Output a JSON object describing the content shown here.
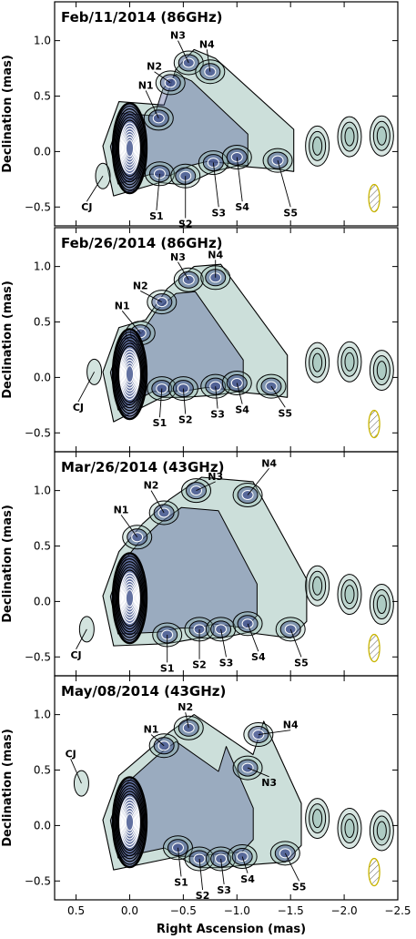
{
  "chart_data": {
    "type": "contour",
    "xlabel": "Right Ascension (mas)",
    "ylabel": "Declination (mas)",
    "xlim": [
      0.7,
      -2.5
    ],
    "ylim": [
      -0.67,
      1.35
    ],
    "x_ticks": [
      0.5,
      0.0,
      -0.5,
      -1.0,
      -1.5,
      -2.0,
      -2.5
    ],
    "x_tick_labels": [
      "0.5",
      "0.0",
      "−0.5",
      "−1.0",
      "−1.5",
      "−2.0",
      "−2.5"
    ],
    "y_ticks": [
      -0.5,
      0.0,
      0.5,
      1.0
    ],
    "y_tick_labels": [
      "−0.5",
      "0.0",
      "0.5",
      "1.0"
    ],
    "colors": {
      "contour": "#000000",
      "inner_contour": "#ffffff",
      "core_fill": "#3d4b8c",
      "jet_fill": "#8fb8ad",
      "beam": "#c8b400"
    },
    "panels": [
      {
        "title": "Feb/11/2014 (86GHz)",
        "components": [
          {
            "label": "CJ",
            "x": 0.25,
            "y": -0.22,
            "label_x": 0.4,
            "label_y": -0.45
          },
          {
            "label": "N1",
            "x": -0.27,
            "y": 0.3,
            "label_x": -0.15,
            "label_y": 0.55
          },
          {
            "label": "N2",
            "x": -0.38,
            "y": 0.62,
            "label_x": -0.23,
            "label_y": 0.72
          },
          {
            "label": "N3",
            "x": -0.55,
            "y": 0.8,
            "label_x": -0.45,
            "label_y": 1.0
          },
          {
            "label": "N4",
            "x": -0.75,
            "y": 0.72,
            "label_x": -0.72,
            "label_y": 0.92
          },
          {
            "label": "S1",
            "x": -0.28,
            "y": -0.2,
            "label_x": -0.25,
            "label_y": -0.53
          },
          {
            "label": "S2",
            "x": -0.52,
            "y": -0.22,
            "label_x": -0.52,
            "label_y": -0.6
          },
          {
            "label": "S3",
            "x": -0.78,
            "y": -0.1,
            "label_x": -0.83,
            "label_y": -0.5
          },
          {
            "label": "S4",
            "x": -1.0,
            "y": -0.05,
            "label_x": -1.05,
            "label_y": -0.45
          },
          {
            "label": "S5",
            "x": -1.38,
            "y": -0.08,
            "label_x": -1.5,
            "label_y": -0.5
          }
        ]
      },
      {
        "title": "Feb/26/2014 (86GHz)",
        "components": [
          {
            "label": "CJ",
            "x": 0.33,
            "y": 0.05,
            "label_x": 0.48,
            "label_y": -0.22
          },
          {
            "label": "N1",
            "x": -0.1,
            "y": 0.4,
            "label_x": 0.07,
            "label_y": 0.6
          },
          {
            "label": "N2",
            "x": -0.3,
            "y": 0.68,
            "label_x": -0.1,
            "label_y": 0.78
          },
          {
            "label": "N3",
            "x": -0.55,
            "y": 0.88,
            "label_x": -0.45,
            "label_y": 1.04
          },
          {
            "label": "N4",
            "x": -0.8,
            "y": 0.9,
            "label_x": -0.8,
            "label_y": 1.06
          },
          {
            "label": "S1",
            "x": -0.3,
            "y": -0.1,
            "label_x": -0.28,
            "label_y": -0.36
          },
          {
            "label": "S2",
            "x": -0.5,
            "y": -0.1,
            "label_x": -0.52,
            "label_y": -0.33
          },
          {
            "label": "S3",
            "x": -0.8,
            "y": -0.08,
            "label_x": -0.82,
            "label_y": -0.28
          },
          {
            "label": "S4",
            "x": -1.0,
            "y": -0.05,
            "label_x": -1.05,
            "label_y": -0.24
          },
          {
            "label": "S5",
            "x": -1.32,
            "y": -0.08,
            "label_x": -1.45,
            "label_y": -0.27
          }
        ]
      },
      {
        "title": "Mar/26/2014 (43GHz)",
        "components": [
          {
            "label": "CJ",
            "x": 0.4,
            "y": -0.25,
            "label_x": 0.5,
            "label_y": -0.43
          },
          {
            "label": "N1",
            "x": -0.07,
            "y": 0.58,
            "label_x": 0.08,
            "label_y": 0.78
          },
          {
            "label": "N2",
            "x": -0.32,
            "y": 0.8,
            "label_x": -0.2,
            "label_y": 1.0
          },
          {
            "label": "N3",
            "x": -0.62,
            "y": 1.0,
            "label_x": -0.8,
            "label_y": 1.08
          },
          {
            "label": "N4",
            "x": -1.1,
            "y": 0.96,
            "label_x": -1.3,
            "label_y": 1.2
          },
          {
            "label": "S1",
            "x": -0.35,
            "y": -0.3,
            "label_x": -0.35,
            "label_y": -0.55
          },
          {
            "label": "S2",
            "x": -0.65,
            "y": -0.25,
            "label_x": -0.65,
            "label_y": -0.52
          },
          {
            "label": "S3",
            "x": -0.85,
            "y": -0.25,
            "label_x": -0.9,
            "label_y": -0.5
          },
          {
            "label": "S4",
            "x": -1.1,
            "y": -0.2,
            "label_x": -1.2,
            "label_y": -0.45
          },
          {
            "label": "S5",
            "x": -1.5,
            "y": -0.25,
            "label_x": -1.6,
            "label_y": -0.5
          }
        ]
      },
      {
        "title": "May/08/2014 (43GHz)",
        "components": [
          {
            "label": "CJ",
            "x": 0.45,
            "y": 0.38,
            "label_x": 0.55,
            "label_y": 0.6
          },
          {
            "label": "N1",
            "x": -0.32,
            "y": 0.72,
            "label_x": -0.2,
            "label_y": 0.82
          },
          {
            "label": "N2",
            "x": -0.55,
            "y": 0.88,
            "label_x": -0.52,
            "label_y": 1.02
          },
          {
            "label": "N3",
            "x": -1.1,
            "y": 0.52,
            "label_x": -1.3,
            "label_y": 0.44
          },
          {
            "label": "N4",
            "x": -1.2,
            "y": 0.82,
            "label_x": -1.5,
            "label_y": 0.86
          },
          {
            "label": "S1",
            "x": -0.45,
            "y": -0.2,
            "label_x": -0.48,
            "label_y": -0.46
          },
          {
            "label": "S2",
            "x": -0.65,
            "y": -0.3,
            "label_x": -0.68,
            "label_y": -0.58
          },
          {
            "label": "S3",
            "x": -0.85,
            "y": -0.3,
            "label_x": -0.88,
            "label_y": -0.53
          },
          {
            "label": "S4",
            "x": -1.05,
            "y": -0.28,
            "label_x": -1.1,
            "label_y": -0.43
          },
          {
            "label": "S5",
            "x": -1.45,
            "y": -0.25,
            "label_x": -1.58,
            "label_y": -0.5
          }
        ]
      }
    ]
  }
}
